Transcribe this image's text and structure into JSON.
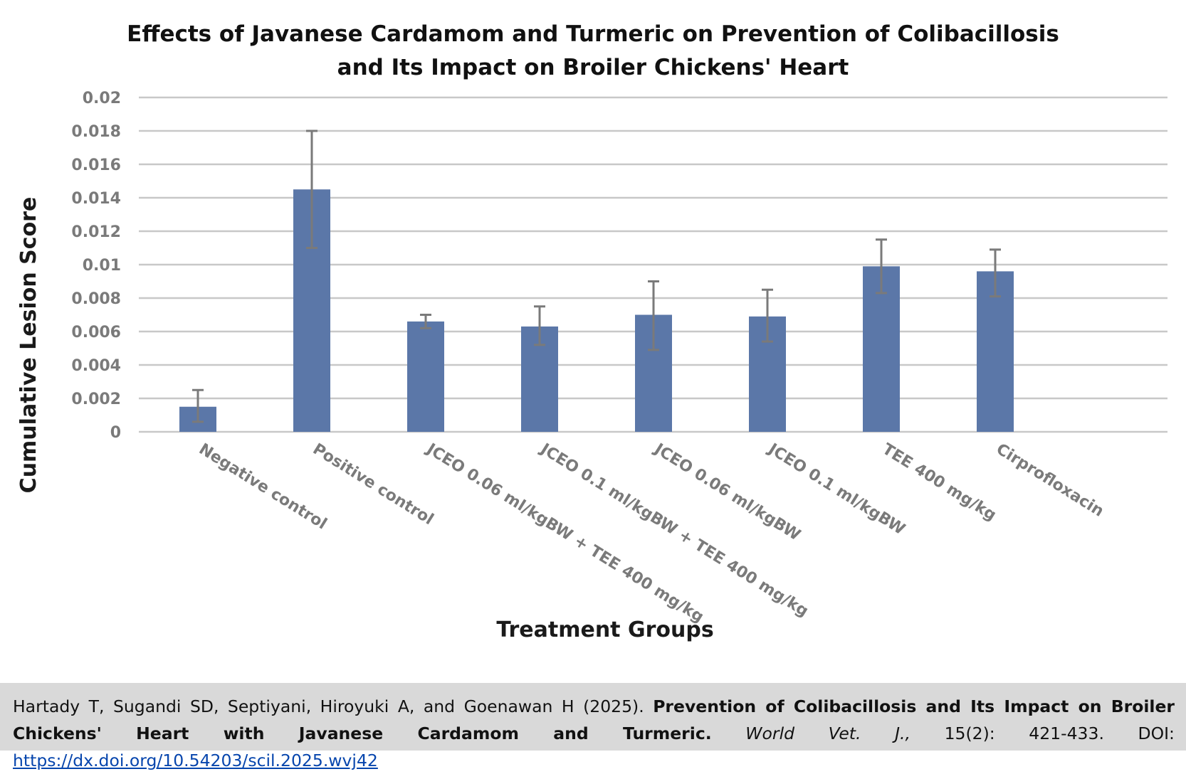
{
  "chart_data": {
    "type": "bar",
    "title_lines": [
      "Effects of Javanese Cardamom and Turmeric on Prevention of Colibacillosis",
      "and Its Impact on Broiler Chickens' Heart"
    ],
    "xlabel": "Treatment Groups",
    "ylabel": "Cumulative Lesion Score",
    "ylim": [
      0,
      0.02
    ],
    "yticks": [
      "0",
      "0.002",
      "0.004",
      "0.006",
      "0.008",
      "0.01",
      "0.012",
      "0.014",
      "0.016",
      "0.018",
      "0.02"
    ],
    "grid": true,
    "categories": [
      "Negative control",
      "Positive control",
      "JCEO 0.06 ml/kgBW + TEE 400 mg/kg",
      "JCEO 0.1 ml/kgBW + TEE 400 mg/kg",
      "JCEO 0.06 ml/kgBW",
      "JCEO 0.1 ml/kgBW",
      "TEE 400 mg/kg",
      "Cirprofloxacin"
    ],
    "values": [
      0.0015,
      0.0145,
      0.0066,
      0.0063,
      0.007,
      0.0069,
      0.0099,
      0.0096
    ],
    "error_low": [
      0.0006,
      0.011,
      0.0062,
      0.0052,
      0.0049,
      0.0054,
      0.0083,
      0.0081
    ],
    "error_high": [
      0.0025,
      0.018,
      0.007,
      0.0075,
      0.009,
      0.0085,
      0.0115,
      0.0109
    ],
    "bar_color": "#5b77a8",
    "errorbar_color": "#7a7a7a",
    "grid_color": "#c8c8c8"
  },
  "citation": {
    "authors": "Hartady T, Sugandi SD, Septiyani, Hiroyuki A, and Goenawan H (2025).",
    "title": "Prevention of Colibacillosis and Its Impact on Broiler Chickens' Heart with Javanese Cardamom and Turmeric.",
    "journal": "World Vet. J.,",
    "volume_pages": "15(2): 421-433. DOI:",
    "doi_link": "https://dx.doi.org/10.54203/scil.2025.wvj42"
  }
}
